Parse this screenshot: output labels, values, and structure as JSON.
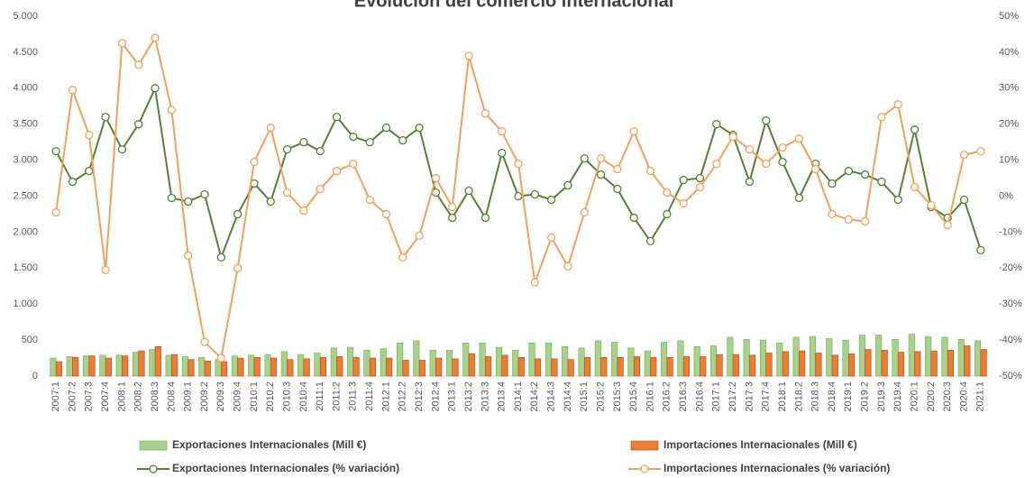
{
  "chart_data": {
    "type": "bar-line",
    "title": "Evolución del comercio internacional",
    "categories": [
      "2007:1",
      "2007:2",
      "2007:3",
      "2007:4",
      "2008:1",
      "2008:2",
      "2008:3",
      "2008:4",
      "2009:1",
      "2009:2",
      "2009:3",
      "2009:4",
      "2010:1",
      "2010:2",
      "2010:3",
      "2010:4",
      "2011:1",
      "2011:2",
      "2011:3",
      "2011:4",
      "2012:1",
      "2012:2",
      "2012:3",
      "2012:4",
      "2013:1",
      "2013:2",
      "2013:3",
      "2013:4",
      "2014:1",
      "2014:2",
      "2014:3",
      "2014:4",
      "2015:1",
      "2015:2",
      "2015:3",
      "2015:4",
      "2016:1",
      "2016:2",
      "2016:3",
      "2016:4",
      "2017:1",
      "2017:2",
      "2017:3",
      "2017:4",
      "2018:1",
      "2018:2",
      "2018:3",
      "2018:4",
      "2019:1",
      "2019:2",
      "2019:3",
      "2019:4",
      "2020:1",
      "2020:2",
      "2020:3",
      "2020:4",
      "2021:1"
    ],
    "series": [
      {
        "name": "Exportaciones Internacionales (Mill €)",
        "kind": "bar",
        "axis": "y",
        "color": "#a9d18e",
        "values": [
          250,
          270,
          280,
          290,
          290,
          330,
          370,
          290,
          270,
          260,
          230,
          280,
          290,
          300,
          340,
          300,
          320,
          390,
          400,
          360,
          380,
          460,
          490,
          360,
          360,
          460,
          460,
          400,
          360,
          460,
          460,
          410,
          390,
          490,
          470,
          390,
          350,
          470,
          490,
          410,
          420,
          540,
          510,
          500,
          460,
          540,
          550,
          520,
          500,
          570,
          570,
          510,
          580,
          550,
          540,
          510,
          490
        ]
      },
      {
        "name": "Importaciones Internacionales (Mill €)",
        "kind": "bar",
        "axis": "y",
        "color": "#ed7d31",
        "values": [
          200,
          260,
          280,
          250,
          280,
          350,
          410,
          300,
          230,
          210,
          200,
          250,
          260,
          250,
          230,
          240,
          260,
          270,
          260,
          250,
          250,
          220,
          220,
          250,
          240,
          310,
          270,
          290,
          260,
          240,
          240,
          230,
          260,
          260,
          260,
          270,
          260,
          260,
          270,
          270,
          300,
          300,
          290,
          320,
          340,
          350,
          320,
          290,
          310,
          370,
          360,
          330,
          340,
          350,
          360,
          420,
          370
        ]
      },
      {
        "name": "Exportaciones Internacionales (% variación)",
        "kind": "line",
        "axis": "y2",
        "color": "#548235",
        "values": [
          12.5,
          4,
          7,
          22,
          13,
          20,
          30,
          -0.5,
          -1.5,
          0.5,
          -17,
          -5,
          3.5,
          -1.5,
          13,
          15,
          12.5,
          22,
          16.5,
          15,
          19,
          15.5,
          19,
          1,
          -6,
          1.5,
          -6,
          12,
          0,
          0.5,
          -1,
          3,
          10.5,
          6,
          2,
          -6,
          -12.5,
          -5,
          4.5,
          5,
          20,
          17,
          4,
          21,
          9.5,
          -0.5,
          9,
          3.5,
          7,
          6,
          4,
          -1,
          18.5,
          -3,
          -6,
          -1,
          -15
        ]
      },
      {
        "name": "Importaciones Internacionales (% variación)",
        "kind": "line",
        "axis": "y2",
        "color": "#f4a05c",
        "values": [
          -4.5,
          29.5,
          17,
          -20.5,
          42.5,
          36.5,
          44,
          24,
          -16.5,
          -40.5,
          -45,
          -20,
          9.5,
          19,
          1,
          -4,
          2,
          7,
          9,
          -1,
          -5,
          -17,
          -11,
          5,
          -3,
          39,
          23,
          18,
          9,
          -24,
          -11.5,
          -19.5,
          -4.5,
          10.5,
          7.5,
          18,
          7,
          1,
          -2,
          2.5,
          9,
          16.5,
          13,
          9,
          13.5,
          16,
          7.5,
          -5,
          -6.5,
          -7,
          22,
          25.5,
          2.5,
          -2.5,
          -8,
          11.5,
          12.5
        ]
      }
    ],
    "ylim": [
      0,
      5000
    ],
    "yticks": [
      0,
      500,
      {
        "value": 1000,
        "label": "1.000"
      },
      {
        "value": 1500,
        "label": "1.500"
      },
      {
        "value": 2000,
        "label": "2.000"
      },
      {
        "value": 2500,
        "label": "2.500"
      },
      {
        "value": 3000,
        "label": "3.000"
      },
      {
        "value": 3500,
        "label": "3.500"
      },
      {
        "value": 4000,
        "label": "4.000"
      },
      {
        "value": 4500,
        "label": "4.500"
      },
      {
        "value": 5000,
        "label": "5.000"
      }
    ],
    "y2lim": [
      -50,
      50
    ],
    "y2ticks": [
      {
        "value": -50,
        "label": "-50%"
      },
      {
        "value": -40,
        "label": "-40%"
      },
      {
        "value": -30,
        "label": "-30%"
      },
      {
        "value": -20,
        "label": "-20%"
      },
      {
        "value": -10,
        "label": "-10%"
      },
      {
        "value": 0,
        "label": "0%"
      },
      {
        "value": 10,
        "label": "10%"
      },
      {
        "value": 20,
        "label": "20%"
      },
      {
        "value": 30,
        "label": "30%"
      },
      {
        "value": 40,
        "label": "40%"
      },
      {
        "value": 50,
        "label": "50%"
      }
    ]
  }
}
